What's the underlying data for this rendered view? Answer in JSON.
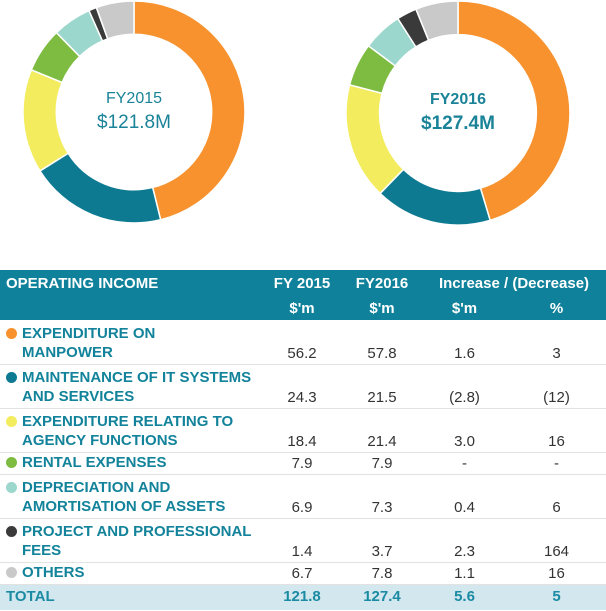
{
  "chart_data": [
    {
      "type": "pie",
      "title": "FY2015",
      "subtitle": "$121.8M",
      "categories": [
        "EXPENDITURE ON MANPOWER",
        "MAINTENANCE OF IT SYSTEMS AND SERVICES",
        "EXPENDITURE RELATING TO AGENCY FUNCTIONS",
        "RENTAL EXPENSES",
        "DEPRECIATION AND AMORTISATION OF ASSETS",
        "PROJECT AND PROFESSIONAL FEES",
        "OTHERS"
      ],
      "values": [
        56.2,
        24.3,
        18.4,
        7.9,
        6.9,
        1.4,
        6.7
      ],
      "colors": [
        "#f7922e",
        "#0e7a92",
        "#f2ec5e",
        "#7dbb41",
        "#9bd7cc",
        "#3a3a3a",
        "#c9c9c9"
      ]
    },
    {
      "type": "pie",
      "title": "FY2016",
      "subtitle": "$127.4M",
      "categories": [
        "EXPENDITURE ON MANPOWER",
        "MAINTENANCE OF IT SYSTEMS AND SERVICES",
        "EXPENDITURE RELATING TO AGENCY FUNCTIONS",
        "RENTAL EXPENSES",
        "DEPRECIATION AND AMORTISATION OF ASSETS",
        "PROJECT AND PROFESSIONAL FEES",
        "OTHERS"
      ],
      "values": [
        57.8,
        21.5,
        21.4,
        7.9,
        7.3,
        3.7,
        7.8
      ],
      "colors": [
        "#f7922e",
        "#0e7a92",
        "#f2ec5e",
        "#7dbb41",
        "#9bd7cc",
        "#3a3a3a",
        "#c9c9c9"
      ]
    },
    {
      "type": "table",
      "headers": [
        "OPERATING INCOME",
        "FY 2015",
        "FY2016",
        "Increase / (Decrease)"
      ],
      "subheaders": [
        "",
        "$'m",
        "$'m",
        "$'m",
        "%"
      ],
      "rows": [
        {
          "label_lines": [
            "EXPENDITURE ON",
            "MANPOWER"
          ],
          "color": "#f7922e",
          "fy2015": "56.2",
          "fy2016": "57.8",
          "change": "1.6",
          "pct": "3"
        },
        {
          "label_lines": [
            "MAINTENANCE OF IT SYSTEMS",
            "AND SERVICES"
          ],
          "color": "#0e7a92",
          "fy2015": "24.3",
          "fy2016": "21.5",
          "change": "(2.8)",
          "pct": "(12)"
        },
        {
          "label_lines": [
            "EXPENDITURE RELATING TO",
            "AGENCY FUNCTIONS"
          ],
          "color": "#f2ec5e",
          "fy2015": "18.4",
          "fy2016": "21.4",
          "change": "3.0",
          "pct": "16"
        },
        {
          "label_lines": [
            "RENTAL EXPENSES"
          ],
          "color": "#7dbb41",
          "fy2015": "7.9",
          "fy2016": "7.9",
          "change": "-",
          "pct": "-"
        },
        {
          "label_lines": [
            "DEPRECIATION AND",
            "AMORTISATION OF ASSETS"
          ],
          "color": "#9bd7cc",
          "fy2015": "6.9",
          "fy2016": "7.3",
          "change": "0.4",
          "pct": "6"
        },
        {
          "label_lines": [
            "PROJECT AND PROFESSIONAL",
            "FEES"
          ],
          "color": "#3a3a3a",
          "fy2015": "1.4",
          "fy2016": "3.7",
          "change": "2.3",
          "pct": "164"
        },
        {
          "label_lines": [
            "OTHERS"
          ],
          "color": "#c9c9c9",
          "fy2015": "6.7",
          "fy2016": "7.8",
          "change": "1.1",
          "pct": "16"
        }
      ],
      "total": {
        "label": "TOTAL",
        "fy2015": "121.8",
        "fy2016": "127.4",
        "change": "5.6",
        "pct": "5"
      }
    }
  ]
}
